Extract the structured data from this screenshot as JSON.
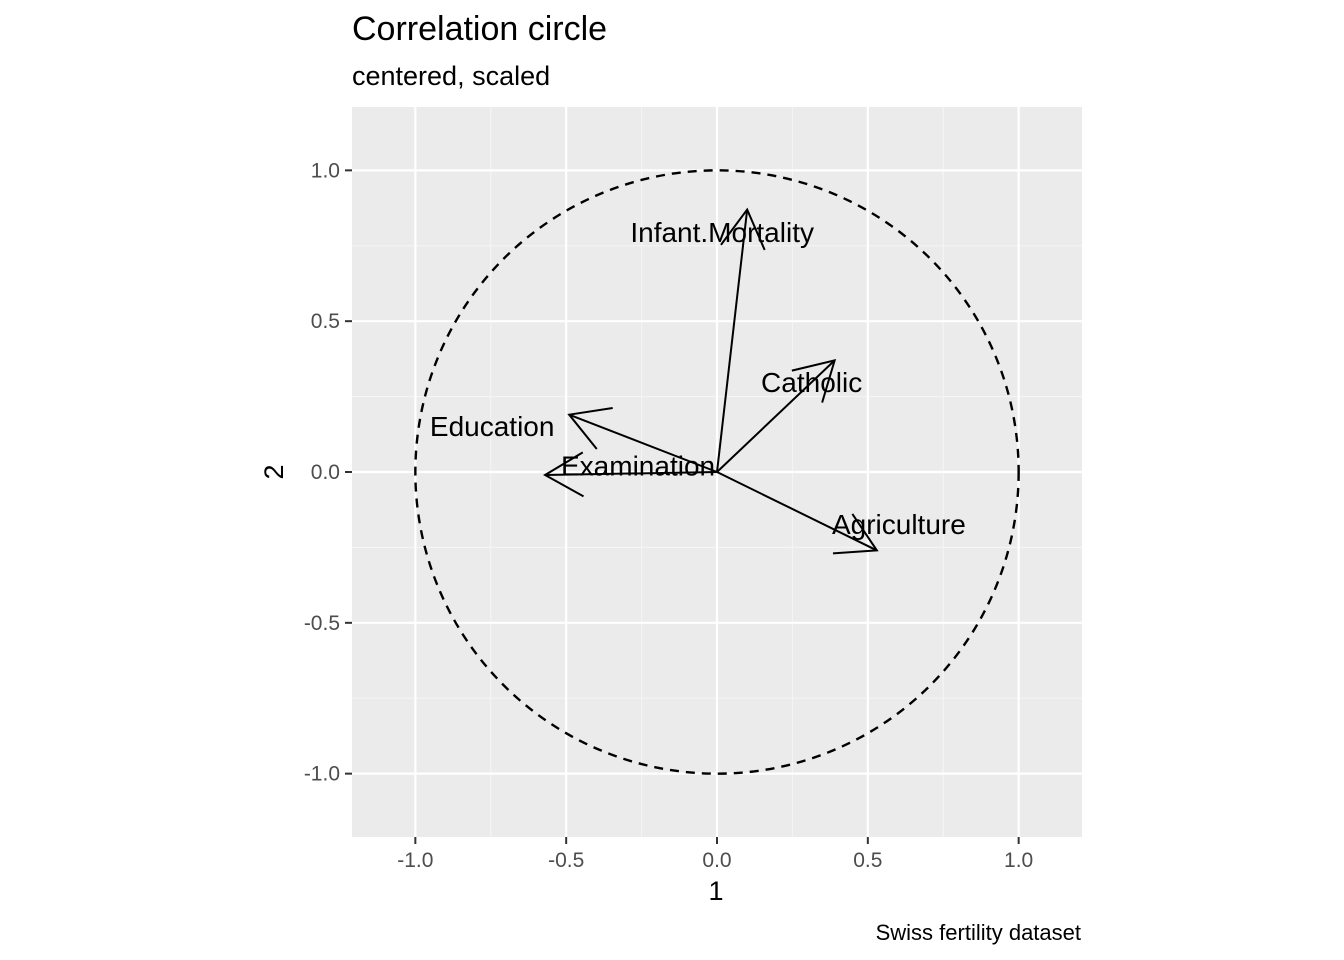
{
  "chart_data": {
    "type": "scatter",
    "title": "Correlation circle",
    "subtitle": "centered, scaled",
    "caption": "Swiss fertility dataset",
    "xlabel": "1",
    "ylabel": "2",
    "xlim": [
      -1.21,
      1.21
    ],
    "ylim": [
      -1.21,
      1.21
    ],
    "x_ticks": [
      {
        "value": -1.0,
        "label": "-1.0"
      },
      {
        "value": -0.5,
        "label": "-0.5"
      },
      {
        "value": 0.0,
        "label": "0.0"
      },
      {
        "value": 0.5,
        "label": "0.5"
      },
      {
        "value": 1.0,
        "label": "1.0"
      }
    ],
    "y_ticks": [
      {
        "value": -1.0,
        "label": "-1.0"
      },
      {
        "value": -0.5,
        "label": "-0.5"
      },
      {
        "value": 0.0,
        "label": "0.0"
      },
      {
        "value": 0.5,
        "label": "0.5"
      },
      {
        "value": 1.0,
        "label": "1.0"
      }
    ],
    "grid": true,
    "unit_circle": {
      "radius": 1,
      "style": "dashed"
    },
    "vectors": [
      {
        "name": "Agriculture",
        "x": 0.53,
        "y": -0.26
      },
      {
        "name": "Examination",
        "x": -0.57,
        "y": -0.01
      },
      {
        "name": "Education",
        "x": -0.49,
        "y": 0.19
      },
      {
        "name": "Catholic",
        "x": 0.39,
        "y": 0.37
      },
      {
        "name": "Infant.Mortality",
        "x": 0.1,
        "y": 0.87
      }
    ],
    "colors": {
      "panel": "#ebebeb",
      "grid_major": "#ffffff",
      "grid_minor": "#f5f5f5",
      "ink": "#000000",
      "tick_text": "#4d4d4d",
      "tick_mark": "#333333"
    }
  }
}
